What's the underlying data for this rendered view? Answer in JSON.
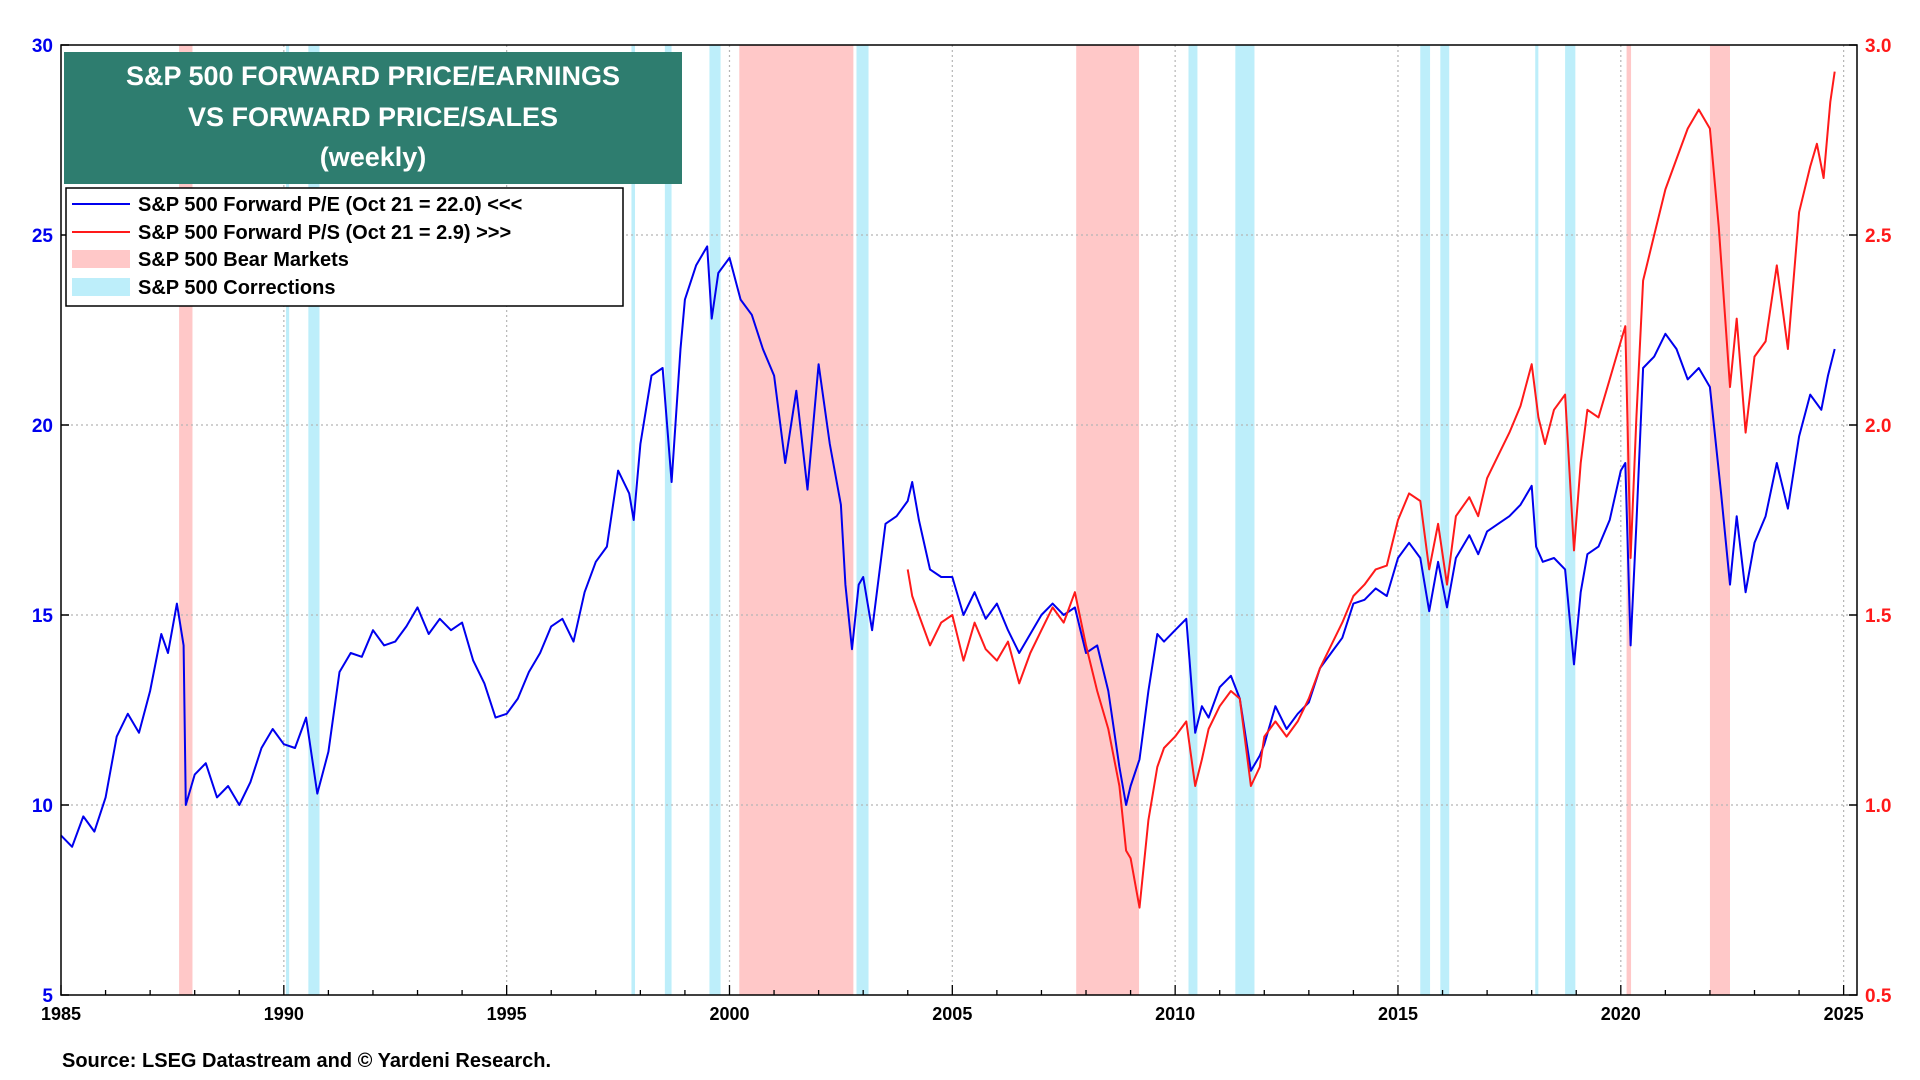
{
  "chart_data": {
    "type": "line",
    "title": [
      "S&P 500 FORWARD PRICE/EARNINGS",
      "VS FORWARD PRICE/SALES",
      "(weekly)"
    ],
    "source": "Source: LSEG Datastream and © Yardeni Research.",
    "x_range": [
      1985,
      2025.3
    ],
    "x_ticks": [
      1985,
      1990,
      1995,
      2000,
      2005,
      2010,
      2015,
      2020,
      2025
    ],
    "y_left": {
      "range": [
        5,
        30
      ],
      "ticks": [
        5,
        10,
        15,
        20,
        25,
        30
      ],
      "color": "#0000ee"
    },
    "y_right": {
      "range": [
        0.5,
        3.0
      ],
      "ticks": [
        "0.5",
        "1.0",
        "1.5",
        "2.0",
        "2.5",
        "3.0"
      ],
      "color": "#ff1a1a"
    },
    "legend": [
      {
        "label": "S&P 500 Forward P/E (Oct 21 = 22.0) <<<",
        "kind": "line",
        "color": "#0000ee"
      },
      {
        "label": "S&P 500 Forward P/S (Oct 21 = 2.9) >>>",
        "kind": "line",
        "color": "#ff1a1a"
      },
      {
        "label": "S&P 500 Bear Markets",
        "kind": "band",
        "color": "#ffc8c8"
      },
      {
        "label": "S&P 500 Corrections",
        "kind": "band",
        "color": "#bdeefa"
      }
    ],
    "bear_markets": [
      [
        1987.65,
        1987.95
      ],
      [
        2000.22,
        2002.78
      ],
      [
        2007.78,
        2009.19
      ],
      [
        2020.13,
        2020.23
      ],
      [
        2022.0,
        2022.45
      ]
    ],
    "corrections": [
      [
        1990.05,
        1990.12
      ],
      [
        1990.55,
        1990.8
      ],
      [
        1997.8,
        1997.88
      ],
      [
        1998.55,
        1998.7
      ],
      [
        1999.55,
        1999.8
      ],
      [
        2002.85,
        2003.12
      ],
      [
        2010.3,
        2010.5
      ],
      [
        2011.35,
        2011.78
      ],
      [
        2015.5,
        2015.72
      ],
      [
        2015.95,
        2016.15
      ],
      [
        2018.08,
        2018.15
      ],
      [
        2018.75,
        2018.98
      ]
    ],
    "series": [
      {
        "name": "S&P 500 Forward P/E",
        "axis": "left",
        "color": "#0000ee",
        "points": [
          [
            1985.0,
            9.2
          ],
          [
            1985.25,
            8.9
          ],
          [
            1985.5,
            9.7
          ],
          [
            1985.75,
            9.3
          ],
          [
            1986.0,
            10.2
          ],
          [
            1986.25,
            11.8
          ],
          [
            1986.5,
            12.4
          ],
          [
            1986.75,
            11.9
          ],
          [
            1987.0,
            13.0
          ],
          [
            1987.25,
            14.5
          ],
          [
            1987.4,
            14.0
          ],
          [
            1987.6,
            15.3
          ],
          [
            1987.75,
            14.2
          ],
          [
            1987.8,
            10.0
          ],
          [
            1988.0,
            10.8
          ],
          [
            1988.25,
            11.1
          ],
          [
            1988.5,
            10.2
          ],
          [
            1988.75,
            10.5
          ],
          [
            1989.0,
            10.0
          ],
          [
            1989.25,
            10.6
          ],
          [
            1989.5,
            11.5
          ],
          [
            1989.75,
            12.0
          ],
          [
            1990.0,
            11.6
          ],
          [
            1990.25,
            11.5
          ],
          [
            1990.5,
            12.3
          ],
          [
            1990.75,
            10.3
          ],
          [
            1991.0,
            11.4
          ],
          [
            1991.25,
            13.5
          ],
          [
            1991.5,
            14.0
          ],
          [
            1991.75,
            13.9
          ],
          [
            1992.0,
            14.6
          ],
          [
            1992.25,
            14.2
          ],
          [
            1992.5,
            14.3
          ],
          [
            1992.75,
            14.7
          ],
          [
            1993.0,
            15.2
          ],
          [
            1993.25,
            14.5
          ],
          [
            1993.5,
            14.9
          ],
          [
            1993.75,
            14.6
          ],
          [
            1994.0,
            14.8
          ],
          [
            1994.25,
            13.8
          ],
          [
            1994.5,
            13.2
          ],
          [
            1994.75,
            12.3
          ],
          [
            1995.0,
            12.4
          ],
          [
            1995.25,
            12.8
          ],
          [
            1995.5,
            13.5
          ],
          [
            1995.75,
            14.0
          ],
          [
            1996.0,
            14.7
          ],
          [
            1996.25,
            14.9
          ],
          [
            1996.5,
            14.3
          ],
          [
            1996.75,
            15.6
          ],
          [
            1997.0,
            16.4
          ],
          [
            1997.25,
            16.8
          ],
          [
            1997.5,
            18.8
          ],
          [
            1997.75,
            18.2
          ],
          [
            1997.85,
            17.5
          ],
          [
            1998.0,
            19.5
          ],
          [
            1998.25,
            21.3
          ],
          [
            1998.5,
            21.5
          ],
          [
            1998.7,
            18.5
          ],
          [
            1998.9,
            22.0
          ],
          [
            1999.0,
            23.3
          ],
          [
            1999.25,
            24.2
          ],
          [
            1999.5,
            24.7
          ],
          [
            1999.6,
            22.8
          ],
          [
            1999.75,
            24.0
          ],
          [
            2000.0,
            24.4
          ],
          [
            2000.25,
            23.3
          ],
          [
            2000.5,
            22.9
          ],
          [
            2000.75,
            22.0
          ],
          [
            2001.0,
            21.3
          ],
          [
            2001.25,
            19.0
          ],
          [
            2001.5,
            20.9
          ],
          [
            2001.75,
            18.3
          ],
          [
            2002.0,
            21.6
          ],
          [
            2002.25,
            19.5
          ],
          [
            2002.5,
            17.9
          ],
          [
            2002.6,
            15.8
          ],
          [
            2002.75,
            14.1
          ],
          [
            2002.9,
            15.8
          ],
          [
            2003.0,
            16.0
          ],
          [
            2003.2,
            14.6
          ],
          [
            2003.5,
            17.4
          ],
          [
            2003.75,
            17.6
          ],
          [
            2004.0,
            18.0
          ],
          [
            2004.1,
            18.5
          ],
          [
            2004.25,
            17.5
          ],
          [
            2004.5,
            16.2
          ],
          [
            2004.75,
            16.0
          ],
          [
            2005.0,
            16.0
          ],
          [
            2005.25,
            15.0
          ],
          [
            2005.5,
            15.6
          ],
          [
            2005.75,
            14.9
          ],
          [
            2006.0,
            15.3
          ],
          [
            2006.25,
            14.6
          ],
          [
            2006.5,
            14.0
          ],
          [
            2006.75,
            14.5
          ],
          [
            2007.0,
            15.0
          ],
          [
            2007.25,
            15.3
          ],
          [
            2007.5,
            15.0
          ],
          [
            2007.75,
            15.2
          ],
          [
            2008.0,
            14.0
          ],
          [
            2008.25,
            14.2
          ],
          [
            2008.5,
            13.0
          ],
          [
            2008.75,
            11.0
          ],
          [
            2008.9,
            10.0
          ],
          [
            2009.0,
            10.5
          ],
          [
            2009.2,
            11.2
          ],
          [
            2009.4,
            13.0
          ],
          [
            2009.6,
            14.5
          ],
          [
            2009.75,
            14.3
          ],
          [
            2010.0,
            14.6
          ],
          [
            2010.25,
            14.9
          ],
          [
            2010.45,
            11.9
          ],
          [
            2010.6,
            12.6
          ],
          [
            2010.75,
            12.3
          ],
          [
            2011.0,
            13.1
          ],
          [
            2011.25,
            13.4
          ],
          [
            2011.45,
            12.8
          ],
          [
            2011.7,
            10.9
          ],
          [
            2011.9,
            11.3
          ],
          [
            2012.0,
            11.6
          ],
          [
            2012.25,
            12.6
          ],
          [
            2012.5,
            12.0
          ],
          [
            2012.75,
            12.4
          ],
          [
            2013.0,
            12.7
          ],
          [
            2013.25,
            13.6
          ],
          [
            2013.5,
            14.0
          ],
          [
            2013.75,
            14.4
          ],
          [
            2014.0,
            15.3
          ],
          [
            2014.25,
            15.4
          ],
          [
            2014.5,
            15.7
          ],
          [
            2014.75,
            15.5
          ],
          [
            2015.0,
            16.5
          ],
          [
            2015.25,
            16.9
          ],
          [
            2015.5,
            16.5
          ],
          [
            2015.7,
            15.1
          ],
          [
            2015.9,
            16.4
          ],
          [
            2016.1,
            15.2
          ],
          [
            2016.3,
            16.5
          ],
          [
            2016.6,
            17.1
          ],
          [
            2016.8,
            16.6
          ],
          [
            2017.0,
            17.2
          ],
          [
            2017.25,
            17.4
          ],
          [
            2017.5,
            17.6
          ],
          [
            2017.75,
            17.9
          ],
          [
            2018.0,
            18.4
          ],
          [
            2018.1,
            16.8
          ],
          [
            2018.25,
            16.4
          ],
          [
            2018.5,
            16.5
          ],
          [
            2018.75,
            16.2
          ],
          [
            2018.95,
            13.7
          ],
          [
            2019.1,
            15.6
          ],
          [
            2019.25,
            16.6
          ],
          [
            2019.5,
            16.8
          ],
          [
            2019.75,
            17.5
          ],
          [
            2020.0,
            18.8
          ],
          [
            2020.1,
            19.0
          ],
          [
            2020.22,
            14.2
          ],
          [
            2020.35,
            17.4
          ],
          [
            2020.5,
            21.5
          ],
          [
            2020.75,
            21.8
          ],
          [
            2021.0,
            22.4
          ],
          [
            2021.25,
            22.0
          ],
          [
            2021.5,
            21.2
          ],
          [
            2021.75,
            21.5
          ],
          [
            2022.0,
            21.0
          ],
          [
            2022.25,
            18.2
          ],
          [
            2022.45,
            15.8
          ],
          [
            2022.6,
            17.6
          ],
          [
            2022.8,
            15.6
          ],
          [
            2023.0,
            16.9
          ],
          [
            2023.25,
            17.6
          ],
          [
            2023.5,
            19.0
          ],
          [
            2023.75,
            17.8
          ],
          [
            2024.0,
            19.7
          ],
          [
            2024.25,
            20.8
          ],
          [
            2024.5,
            20.4
          ],
          [
            2024.65,
            21.3
          ],
          [
            2024.8,
            22.0
          ]
        ]
      },
      {
        "name": "S&P 500 Forward P/S",
        "axis": "right",
        "color": "#ff1a1a",
        "points": [
          [
            2004.0,
            1.62
          ],
          [
            2004.1,
            1.55
          ],
          [
            2004.25,
            1.5
          ],
          [
            2004.5,
            1.42
          ],
          [
            2004.75,
            1.48
          ],
          [
            2005.0,
            1.5
          ],
          [
            2005.25,
            1.38
          ],
          [
            2005.5,
            1.48
          ],
          [
            2005.75,
            1.41
          ],
          [
            2006.0,
            1.38
          ],
          [
            2006.25,
            1.43
          ],
          [
            2006.5,
            1.32
          ],
          [
            2006.75,
            1.4
          ],
          [
            2007.0,
            1.46
          ],
          [
            2007.25,
            1.52
          ],
          [
            2007.5,
            1.48
          ],
          [
            2007.75,
            1.56
          ],
          [
            2008.0,
            1.42
          ],
          [
            2008.25,
            1.3
          ],
          [
            2008.5,
            1.2
          ],
          [
            2008.75,
            1.05
          ],
          [
            2008.9,
            0.88
          ],
          [
            2009.0,
            0.86
          ],
          [
            2009.2,
            0.73
          ],
          [
            2009.4,
            0.96
          ],
          [
            2009.6,
            1.1
          ],
          [
            2009.75,
            1.15
          ],
          [
            2010.0,
            1.18
          ],
          [
            2010.25,
            1.22
          ],
          [
            2010.45,
            1.05
          ],
          [
            2010.6,
            1.12
          ],
          [
            2010.75,
            1.2
          ],
          [
            2011.0,
            1.26
          ],
          [
            2011.25,
            1.3
          ],
          [
            2011.45,
            1.28
          ],
          [
            2011.7,
            1.05
          ],
          [
            2011.9,
            1.1
          ],
          [
            2012.0,
            1.18
          ],
          [
            2012.25,
            1.22
          ],
          [
            2012.5,
            1.18
          ],
          [
            2012.75,
            1.22
          ],
          [
            2013.0,
            1.28
          ],
          [
            2013.25,
            1.36
          ],
          [
            2013.5,
            1.42
          ],
          [
            2013.75,
            1.48
          ],
          [
            2014.0,
            1.55
          ],
          [
            2014.25,
            1.58
          ],
          [
            2014.5,
            1.62
          ],
          [
            2014.75,
            1.63
          ],
          [
            2015.0,
            1.75
          ],
          [
            2015.25,
            1.82
          ],
          [
            2015.5,
            1.8
          ],
          [
            2015.7,
            1.62
          ],
          [
            2015.9,
            1.74
          ],
          [
            2016.1,
            1.58
          ],
          [
            2016.3,
            1.76
          ],
          [
            2016.6,
            1.81
          ],
          [
            2016.8,
            1.76
          ],
          [
            2017.0,
            1.86
          ],
          [
            2017.25,
            1.92
          ],
          [
            2017.5,
            1.98
          ],
          [
            2017.75,
            2.05
          ],
          [
            2018.0,
            2.16
          ],
          [
            2018.15,
            2.02
          ],
          [
            2018.3,
            1.95
          ],
          [
            2018.5,
            2.04
          ],
          [
            2018.75,
            2.08
          ],
          [
            2018.95,
            1.67
          ],
          [
            2019.1,
            1.9
          ],
          [
            2019.25,
            2.04
          ],
          [
            2019.5,
            2.02
          ],
          [
            2019.75,
            2.12
          ],
          [
            2020.0,
            2.22
          ],
          [
            2020.1,
            2.26
          ],
          [
            2020.22,
            1.65
          ],
          [
            2020.35,
            2.02
          ],
          [
            2020.5,
            2.38
          ],
          [
            2020.75,
            2.5
          ],
          [
            2021.0,
            2.62
          ],
          [
            2021.25,
            2.7
          ],
          [
            2021.5,
            2.78
          ],
          [
            2021.75,
            2.83
          ],
          [
            2022.0,
            2.78
          ],
          [
            2022.2,
            2.52
          ],
          [
            2022.45,
            2.1
          ],
          [
            2022.6,
            2.28
          ],
          [
            2022.8,
            1.98
          ],
          [
            2023.0,
            2.18
          ],
          [
            2023.25,
            2.22
          ],
          [
            2023.5,
            2.42
          ],
          [
            2023.75,
            2.2
          ],
          [
            2024.0,
            2.56
          ],
          [
            2024.25,
            2.68
          ],
          [
            2024.4,
            2.74
          ],
          [
            2024.55,
            2.65
          ],
          [
            2024.7,
            2.85
          ],
          [
            2024.8,
            2.93
          ]
        ]
      }
    ]
  }
}
